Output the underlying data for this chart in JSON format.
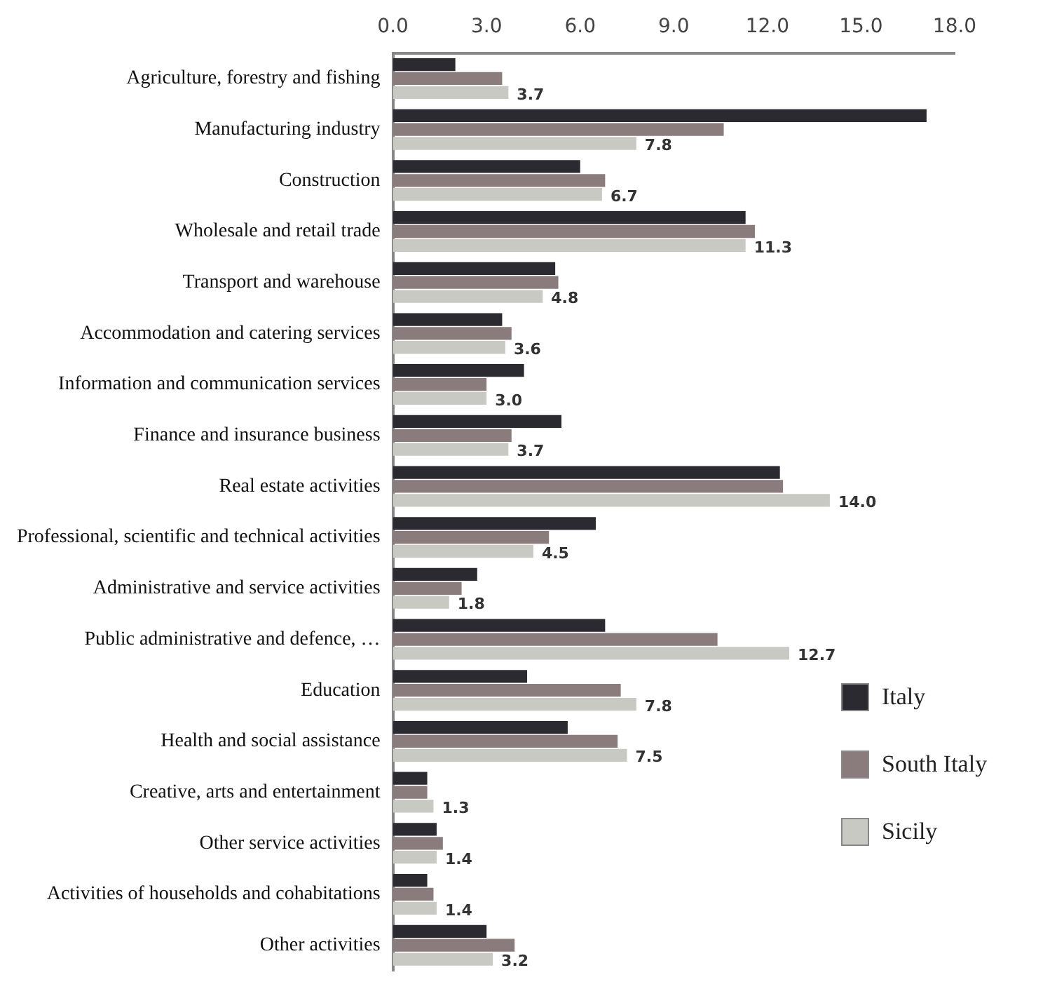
{
  "chart_data": {
    "type": "bar",
    "orientation": "horizontal",
    "categories": [
      "Agriculture, forestry and fishing",
      "Manufacturing industry",
      "Construction",
      "Wholesale and retail trade",
      "Transport and warehouse",
      "Accommodation and catering services",
      "Information and communication services",
      "Finance and insurance business",
      "Real estate activities",
      "Professional, scientific and technical activities",
      "Administrative and service activities",
      "Public administrative and defence, …",
      "Education",
      "Health and social assistance",
      "Creative, arts and entertainment",
      "Other service activities",
      "Activities of households and cohabitations",
      "Other activities"
    ],
    "series": [
      {
        "name": "Italy",
        "color": "#2b2a30",
        "values": [
          2.0,
          17.1,
          6.0,
          11.3,
          5.2,
          3.5,
          4.2,
          5.4,
          12.4,
          6.5,
          2.7,
          6.8,
          4.3,
          5.6,
          1.1,
          1.4,
          1.1,
          3.0
        ]
      },
      {
        "name": "South Italy",
        "color": "#8a7b7c",
        "values": [
          3.5,
          10.6,
          6.8,
          11.6,
          5.3,
          3.8,
          3.0,
          3.8,
          12.5,
          5.0,
          2.2,
          10.4,
          7.3,
          7.2,
          1.1,
          1.6,
          1.3,
          3.9
        ]
      },
      {
        "name": "Sicily",
        "color": "#c8c9c3",
        "values": [
          3.7,
          7.8,
          6.7,
          11.3,
          4.8,
          3.6,
          3.0,
          3.7,
          14.0,
          4.5,
          1.8,
          12.7,
          7.8,
          7.5,
          1.3,
          1.4,
          1.4,
          3.2
        ],
        "value_labels": [
          "3.7",
          "7.8",
          "6.7",
          "11.3",
          "4.8",
          "3.6",
          "3.0",
          "3.7",
          "14.0",
          "4.5",
          "1.8",
          "12.7",
          "7.8",
          "7.5",
          "1.3",
          "1.4",
          "1.4",
          "3.2"
        ]
      }
    ],
    "xlim": [
      0,
      18
    ],
    "xticks": [
      {
        "value": 0,
        "label": "0.0"
      },
      {
        "value": 3,
        "label": "3.0"
      },
      {
        "value": 6,
        "label": "6.0"
      },
      {
        "value": 9,
        "label": "9.0"
      },
      {
        "value": 12,
        "label": "12.0"
      },
      {
        "value": 15,
        "label": "15.0"
      },
      {
        "value": 18,
        "label": "18.0"
      }
    ],
    "grid": false,
    "legend": "bottom right"
  }
}
